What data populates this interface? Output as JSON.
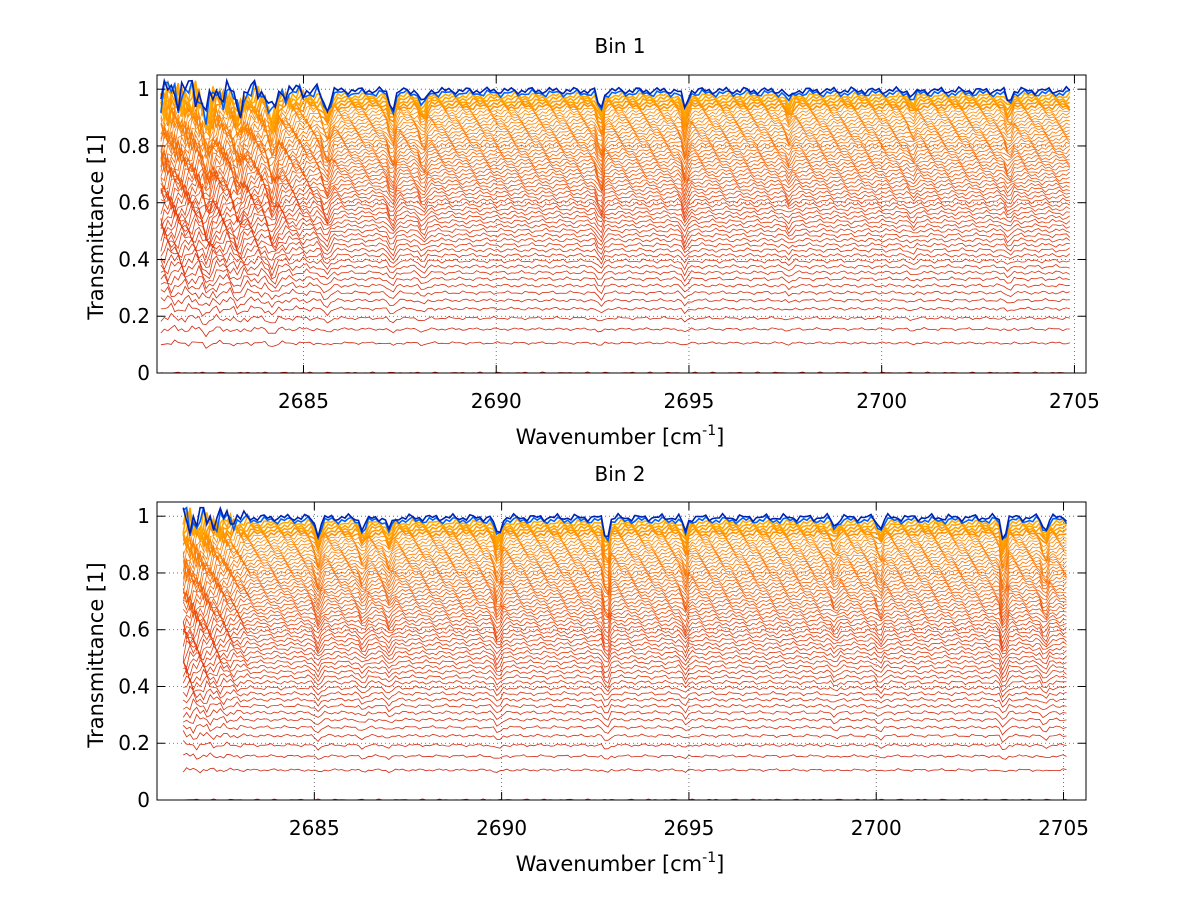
{
  "chart_data": [
    {
      "type": "line",
      "title": "Bin 1",
      "xlabel_main": "Wavenumber [cm",
      "xlabel_sup": "-1",
      "xlabel_close": "]",
      "ylabel": "Transmittance [1]",
      "xlim": [
        2681.2,
        2705.3
      ],
      "ylim": [
        0,
        1.05
      ],
      "xticks": [
        2685,
        2690,
        2695,
        2700,
        2705
      ],
      "yticks": [
        0,
        0.2,
        0.4,
        0.6,
        0.8,
        1
      ],
      "xtick_labels": [
        "2685",
        "2690",
        "2695",
        "2700",
        "2705"
      ],
      "ytick_labels": [
        "0",
        "0.2",
        "0.4",
        "0.6",
        "0.8",
        "1"
      ],
      "grid": "dotted",
      "x_range": [
        2681.3,
        2704.9
      ],
      "series_count": 60,
      "levels_cutoff": 0.93,
      "strong_noise_below_x": 2686,
      "absorption_lines": [
        {
          "x": 2682.5,
          "depth": 0.1,
          "width": 0.12
        },
        {
          "x": 2683.3,
          "depth": 0.08,
          "width": 0.12
        },
        {
          "x": 2684.2,
          "depth": 0.1,
          "width": 0.12
        },
        {
          "x": 2685.6,
          "depth": 0.08,
          "width": 0.12
        },
        {
          "x": 2687.3,
          "depth": 0.08,
          "width": 0.1
        },
        {
          "x": 2688.1,
          "depth": 0.06,
          "width": 0.1
        },
        {
          "x": 2692.7,
          "depth": 0.09,
          "width": 0.08
        },
        {
          "x": 2694.9,
          "depth": 0.08,
          "width": 0.08
        },
        {
          "x": 2697.6,
          "depth": 0.04,
          "width": 0.08
        },
        {
          "x": 2700.8,
          "depth": 0.03,
          "width": 0.08
        },
        {
          "x": 2703.3,
          "depth": 0.05,
          "width": 0.08
        }
      ],
      "colors": {
        "low": "#c81e10",
        "mid": "#e8400c",
        "high": "#ff8c00",
        "top": "#ffb000",
        "cool_top": "#0066ff",
        "cool_deep": "#000088"
      }
    },
    {
      "type": "line",
      "title": "Bin 2",
      "xlabel_main": "Wavenumber [cm",
      "xlabel_sup": "-1",
      "xlabel_close": "]",
      "ylabel": "Transmittance [1]",
      "xlim": [
        2680.8,
        2705.6
      ],
      "ylim": [
        0,
        1.05
      ],
      "xticks": [
        2685,
        2690,
        2695,
        2700,
        2705
      ],
      "yticks": [
        0,
        0.2,
        0.4,
        0.6,
        0.8,
        1
      ],
      "xtick_labels": [
        "2685",
        "2690",
        "2695",
        "2700",
        "2705"
      ],
      "ytick_labels": [
        "0",
        "0.2",
        "0.4",
        "0.6",
        "0.8",
        "1"
      ],
      "grid": "dotted",
      "x_range": [
        2681.5,
        2705.1
      ],
      "series_count": 60,
      "levels_cutoff": 0.93,
      "strong_noise_below_x": 2683.3,
      "absorption_lines": [
        {
          "x": 2685.1,
          "depth": 0.07,
          "width": 0.1
        },
        {
          "x": 2686.3,
          "depth": 0.05,
          "width": 0.1
        },
        {
          "x": 2687.0,
          "depth": 0.05,
          "width": 0.1
        },
        {
          "x": 2689.9,
          "depth": 0.08,
          "width": 0.1
        },
        {
          "x": 2692.8,
          "depth": 0.1,
          "width": 0.08
        },
        {
          "x": 2694.9,
          "depth": 0.06,
          "width": 0.08
        },
        {
          "x": 2698.9,
          "depth": 0.04,
          "width": 0.08
        },
        {
          "x": 2700.1,
          "depth": 0.05,
          "width": 0.08
        },
        {
          "x": 2703.4,
          "depth": 0.1,
          "width": 0.08
        },
        {
          "x": 2704.5,
          "depth": 0.06,
          "width": 0.08
        }
      ],
      "colors": {
        "low": "#c81e10",
        "mid": "#e8400c",
        "high": "#ff8c00",
        "top": "#ffb000",
        "cool_top": "#0066ff",
        "cool_deep": "#000088"
      }
    }
  ]
}
